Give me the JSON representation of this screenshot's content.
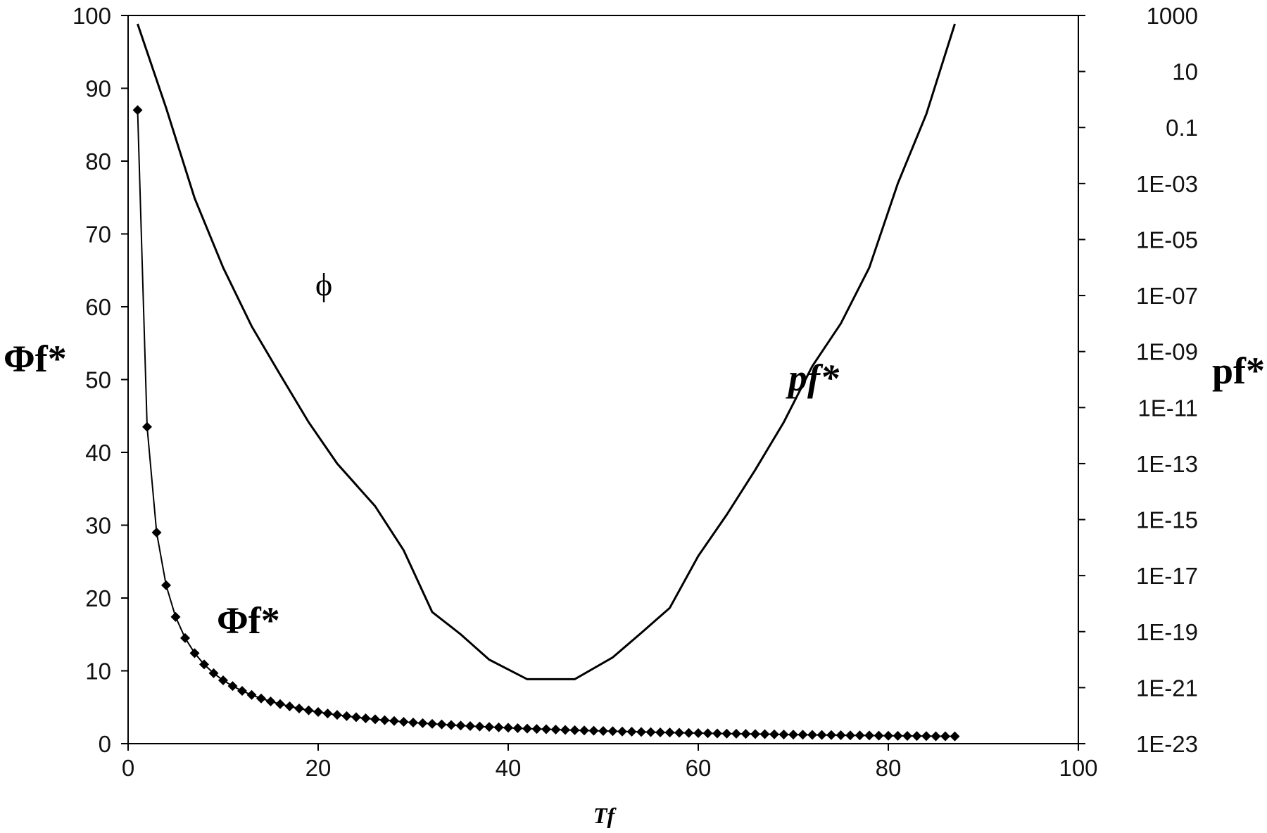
{
  "chart_data": {
    "type": "line",
    "title": "",
    "xlabel": "Tf",
    "ylabel_left": "Φf*",
    "ylabel_right": "pf*",
    "xlim": [
      0,
      100
    ],
    "ylim_left": [
      0,
      100
    ],
    "ylim_right": [
      1e-23,
      1000
    ],
    "y_right_scale": "log",
    "grid": false,
    "legend": "none",
    "x_ticks": [
      "0",
      "20",
      "40",
      "60",
      "80",
      "100"
    ],
    "y_left_ticks": [
      "0",
      "10",
      "20",
      "30",
      "40",
      "50",
      "60",
      "70",
      "80",
      "90",
      "100"
    ],
    "y_right_ticks": [
      "1E-23",
      "1E-21",
      "1E-19",
      "1E-17",
      "1E-15",
      "1E-13",
      "1E-11",
      "1E-09",
      "1E-07",
      "1E-05",
      "1E-03",
      "0.1",
      "10",
      "1000"
    ],
    "annotations": [
      "ϕ",
      "Φf*",
      "pf*"
    ],
    "series": [
      {
        "name": "Φf*",
        "axis": "left",
        "marker": "diamond",
        "x": [
          1,
          2,
          3,
          4,
          5,
          6,
          7,
          8,
          9,
          10,
          11,
          12,
          13,
          14,
          15,
          16,
          17,
          18,
          19,
          20,
          21,
          22,
          23,
          24,
          25,
          26,
          27,
          28,
          29,
          30,
          31,
          32,
          33,
          34,
          35,
          36,
          37,
          38,
          39,
          40,
          41,
          42,
          43,
          44,
          45,
          46,
          47,
          48,
          49,
          50,
          51,
          52,
          53,
          54,
          55,
          56,
          57,
          58,
          59,
          60,
          61,
          62,
          63,
          64,
          65,
          66,
          67,
          68,
          69,
          70,
          71,
          72,
          73,
          74,
          75,
          76,
          77,
          78,
          79,
          80,
          81,
          82,
          83,
          84,
          85,
          86,
          87
        ],
        "values": [
          87,
          43.5,
          29,
          21.75,
          17.4,
          14.5,
          12.43,
          10.88,
          9.67,
          8.7,
          7.91,
          7.25,
          6.69,
          6.21,
          5.8,
          5.44,
          5.12,
          4.83,
          4.58,
          4.35,
          4.14,
          3.95,
          3.78,
          3.63,
          3.48,
          3.35,
          3.22,
          3.11,
          3,
          2.9,
          2.81,
          2.72,
          2.64,
          2.56,
          2.49,
          2.42,
          2.35,
          2.29,
          2.23,
          2.18,
          2.12,
          2.07,
          2.02,
          1.98,
          1.93,
          1.89,
          1.85,
          1.81,
          1.78,
          1.74,
          1.71,
          1.67,
          1.64,
          1.61,
          1.58,
          1.55,
          1.53,
          1.5,
          1.47,
          1.45,
          1.43,
          1.4,
          1.38,
          1.36,
          1.34,
          1.32,
          1.3,
          1.28,
          1.26,
          1.24,
          1.23,
          1.21,
          1.19,
          1.18,
          1.16,
          1.14,
          1.13,
          1.12,
          1.1,
          1.09,
          1.07,
          1.06,
          1.05,
          1.04,
          1.02,
          1.01,
          1
        ]
      },
      {
        "name": "pf*",
        "axis": "right",
        "marker": "none",
        "x": [
          1,
          4,
          7,
          10,
          13,
          16,
          19,
          22,
          26,
          29,
          32,
          35,
          38,
          42,
          44,
          47,
          51,
          54,
          57,
          60,
          63,
          66,
          69,
          72,
          75,
          78,
          81,
          84,
          87
        ],
        "values": [
          500,
          0.5,
          0.0003,
          1e-06,
          8e-09,
          1.5e-10,
          3e-12,
          1e-13,
          3e-15,
          8e-17,
          5e-19,
          8e-20,
          1e-20,
          2e-21,
          2e-21,
          2e-21,
          1.2e-20,
          9e-20,
          7e-19,
          5e-17,
          1.5e-15,
          6e-14,
          3e-12,
          3e-10,
          1e-08,
          1e-06,
          0.001,
          0.3,
          500
        ]
      }
    ]
  }
}
